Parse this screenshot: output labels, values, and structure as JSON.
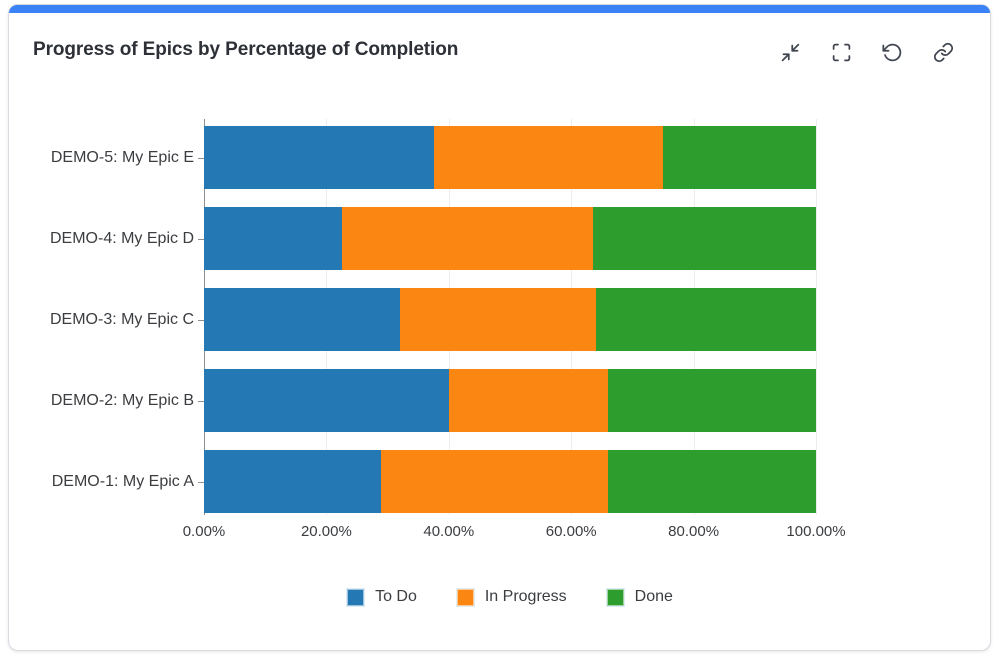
{
  "card": {
    "accent_color": "#3b82f6"
  },
  "header": {
    "title": "Progress of Epics by Percentage of Completion",
    "toolbar_icons": [
      "collapse-icon",
      "fullscreen-icon",
      "refresh-icon",
      "link-icon"
    ]
  },
  "chart_data": {
    "type": "bar",
    "orientation": "horizontal",
    "stacked": true,
    "title": "Progress of Epics by Percentage of Completion",
    "categories": [
      "DEMO-5: My Epic E",
      "DEMO-4: My Epic D",
      "DEMO-3: My Epic C",
      "DEMO-2: My Epic B",
      "DEMO-1: My Epic A"
    ],
    "series": [
      {
        "name": "To Do",
        "color": "#2478b4",
        "values": [
          37.5,
          22.5,
          32.0,
          40.0,
          29.0
        ]
      },
      {
        "name": "In Progress",
        "color": "#fb8712",
        "values": [
          37.5,
          41.0,
          32.0,
          26.0,
          37.0
        ]
      },
      {
        "name": "Done",
        "color": "#2d9e2e",
        "values": [
          25.0,
          36.5,
          36.0,
          34.0,
          34.0
        ]
      }
    ],
    "x_ticks": [
      "0.00%",
      "20.00%",
      "40.00%",
      "60.00%",
      "80.00%",
      "100.00%"
    ],
    "xlim": [
      0,
      100
    ],
    "grid": true,
    "legend_position": "bottom"
  }
}
